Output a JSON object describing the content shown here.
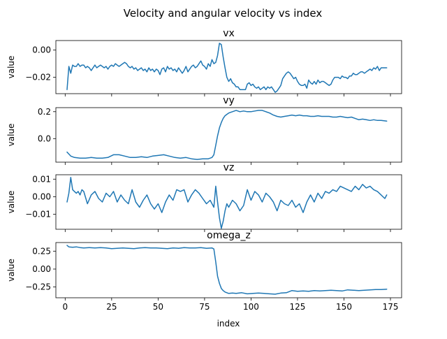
{
  "figure": {
    "title": "Velocity and angular velocity vs index",
    "xlabel": "index"
  },
  "chart_data": [
    {
      "type": "line",
      "title": "vx",
      "xlabel": "",
      "ylabel": "value",
      "xlim": [
        -5,
        181
      ],
      "ylim": [
        -0.032,
        0.007
      ],
      "yticks": [
        0.0,
        -0.02
      ],
      "ytick_labels": [
        "0.00",
        "−0.02"
      ],
      "xticks": [
        0,
        25,
        50,
        75,
        100,
        125,
        150,
        175
      ],
      "xtick_labels": [],
      "grid": false,
      "series": [
        {
          "color": "#1f77b4",
          "x": [
            1,
            2,
            3,
            4,
            5,
            6,
            7,
            8,
            9,
            10,
            11,
            12,
            13,
            14,
            15,
            16,
            17,
            18,
            19,
            20,
            21,
            22,
            23,
            24,
            25,
            26,
            27,
            28,
            29,
            30,
            31,
            32,
            33,
            34,
            35,
            36,
            37,
            38,
            39,
            40,
            41,
            42,
            43,
            44,
            45,
            46,
            47,
            48,
            49,
            50,
            51,
            52,
            53,
            54,
            55,
            56,
            57,
            58,
            59,
            60,
            61,
            62,
            63,
            64,
            65,
            66,
            67,
            68,
            69,
            70,
            71,
            72,
            73,
            74,
            75,
            76,
            77,
            78,
            79,
            80,
            81,
            82,
            83,
            84,
            85,
            86,
            87,
            88,
            89,
            90,
            91,
            92,
            93,
            94,
            95,
            96,
            97,
            98,
            99,
            100,
            101,
            102,
            103,
            104,
            105,
            106,
            107,
            108,
            109,
            110,
            111,
            112,
            113,
            114,
            115,
            116,
            117,
            118,
            119,
            120,
            121,
            122,
            123,
            124,
            125,
            126,
            127,
            128,
            129,
            130,
            131,
            132,
            133,
            134,
            135,
            136,
            137,
            138,
            139,
            140,
            141,
            142,
            143,
            144,
            145,
            146,
            147,
            148,
            149,
            150,
            151,
            152,
            153,
            154,
            155,
            156,
            157,
            158,
            159,
            160,
            161,
            162,
            163,
            164,
            165,
            166,
            167,
            168,
            169,
            170,
            171,
            172,
            173
          ],
          "y": [
            -0.029,
            -0.012,
            -0.017,
            -0.011,
            -0.012,
            -0.012,
            -0.01,
            -0.012,
            -0.011,
            -0.011,
            -0.013,
            -0.012,
            -0.013,
            -0.015,
            -0.013,
            -0.011,
            -0.013,
            -0.012,
            -0.011,
            -0.012,
            -0.013,
            -0.012,
            -0.014,
            -0.012,
            -0.011,
            -0.012,
            -0.01,
            -0.011,
            -0.012,
            -0.011,
            -0.01,
            -0.009,
            -0.01,
            -0.012,
            -0.013,
            -0.012,
            -0.014,
            -0.013,
            -0.015,
            -0.014,
            -0.013,
            -0.015,
            -0.014,
            -0.016,
            -0.013,
            -0.015,
            -0.014,
            -0.016,
            -0.014,
            -0.015,
            -0.018,
            -0.014,
            -0.013,
            -0.016,
            -0.012,
            -0.014,
            -0.013,
            -0.015,
            -0.014,
            -0.016,
            -0.013,
            -0.015,
            -0.017,
            -0.015,
            -0.012,
            -0.016,
            -0.014,
            -0.012,
            -0.011,
            -0.013,
            -0.012,
            -0.01,
            -0.008,
            -0.011,
            -0.012,
            -0.014,
            -0.01,
            -0.012,
            -0.007,
            -0.01,
            -0.009,
            -0.004,
            0.005,
            0.004,
            -0.005,
            -0.013,
            -0.02,
            -0.023,
            -0.021,
            -0.024,
            -0.025,
            -0.027,
            -0.027,
            -0.029,
            -0.029,
            -0.029,
            -0.029,
            -0.025,
            -0.024,
            -0.026,
            -0.025,
            -0.027,
            -0.028,
            -0.027,
            -0.029,
            -0.028,
            -0.027,
            -0.029,
            -0.027,
            -0.028,
            -0.027,
            -0.029,
            -0.031,
            -0.03,
            -0.028,
            -0.026,
            -0.021,
            -0.019,
            -0.017,
            -0.016,
            -0.017,
            -0.019,
            -0.021,
            -0.02,
            -0.023,
            -0.025,
            -0.026,
            -0.026,
            -0.025,
            -0.028,
            -0.022,
            -0.024,
            -0.025,
            -0.023,
            -0.025,
            -0.022,
            -0.024,
            -0.023,
            -0.023,
            -0.024,
            -0.025,
            -0.026,
            -0.025,
            -0.022,
            -0.02,
            -0.02,
            -0.02,
            -0.021,
            -0.019,
            -0.02,
            -0.02,
            -0.021,
            -0.019,
            -0.019,
            -0.017,
            -0.018,
            -0.018,
            -0.017,
            -0.016,
            -0.016,
            -0.017,
            -0.016,
            -0.015,
            -0.014,
            -0.015,
            -0.013,
            -0.014,
            -0.012,
            -0.015,
            -0.013,
            -0.013,
            -0.013,
            -0.013
          ]
        }
      ]
    },
    {
      "type": "line",
      "title": "vy",
      "xlabel": "",
      "ylabel": "value",
      "xlim": [
        -5,
        181
      ],
      "ylim": [
        -0.175,
        0.23
      ],
      "yticks": [
        0.2,
        0.0
      ],
      "ytick_labels": [
        "0.2",
        "0.0"
      ],
      "xticks": [
        0,
        25,
        50,
        75,
        100,
        125,
        150,
        175
      ],
      "xtick_labels": [],
      "grid": false,
      "series": [
        {
          "color": "#1f77b4",
          "x": [
            1,
            3,
            5,
            8,
            11,
            14,
            17,
            20,
            23,
            26,
            29,
            32,
            35,
            38,
            41,
            44,
            47,
            50,
            53,
            56,
            59,
            62,
            65,
            68,
            71,
            74,
            77,
            79,
            80,
            81,
            82,
            83,
            84,
            85,
            86,
            87,
            88,
            89,
            90,
            92,
            94,
            96,
            98,
            100,
            102,
            104,
            106,
            108,
            110,
            112,
            114,
            116,
            118,
            120,
            122,
            124,
            126,
            128,
            130,
            132,
            134,
            136,
            138,
            140,
            142,
            144,
            146,
            148,
            150,
            152,
            154,
            156,
            158,
            160,
            162,
            164,
            166,
            168,
            170,
            173
          ],
          "y": [
            -0.1,
            -0.13,
            -0.14,
            -0.145,
            -0.145,
            -0.14,
            -0.145,
            -0.145,
            -0.14,
            -0.12,
            -0.12,
            -0.13,
            -0.14,
            -0.14,
            -0.135,
            -0.14,
            -0.13,
            -0.125,
            -0.12,
            -0.13,
            -0.14,
            -0.145,
            -0.14,
            -0.15,
            -0.155,
            -0.15,
            -0.15,
            -0.14,
            -0.12,
            -0.05,
            0.02,
            0.08,
            0.12,
            0.15,
            0.17,
            0.18,
            0.19,
            0.195,
            0.2,
            0.21,
            0.2,
            0.205,
            0.2,
            0.2,
            0.205,
            0.21,
            0.21,
            0.2,
            0.19,
            0.175,
            0.165,
            0.16,
            0.165,
            0.17,
            0.175,
            0.17,
            0.175,
            0.17,
            0.17,
            0.165,
            0.165,
            0.17,
            0.165,
            0.165,
            0.165,
            0.16,
            0.16,
            0.165,
            0.16,
            0.155,
            0.16,
            0.15,
            0.14,
            0.145,
            0.14,
            0.135,
            0.14,
            0.135,
            0.135,
            0.13
          ]
        }
      ]
    },
    {
      "type": "line",
      "title": "vz",
      "xlabel": "",
      "ylabel": "value",
      "xlim": [
        -5,
        181
      ],
      "ylim": [
        -0.0185,
        0.0125
      ],
      "yticks": [
        0.01,
        0.0,
        -0.01
      ],
      "ytick_labels": [
        "0.01",
        "0.00",
        "−0.01"
      ],
      "xticks": [
        0,
        25,
        50,
        75,
        100,
        125,
        150,
        175
      ],
      "xtick_labels": [],
      "grid": false,
      "series": [
        {
          "color": "#1f77b4",
          "x": [
            1,
            2,
            3,
            4,
            5,
            6,
            7,
            8,
            9,
            10,
            12,
            14,
            16,
            18,
            20,
            22,
            24,
            26,
            28,
            30,
            32,
            34,
            36,
            38,
            40,
            42,
            44,
            46,
            48,
            50,
            52,
            54,
            56,
            58,
            60,
            62,
            64,
            66,
            68,
            70,
            72,
            74,
            76,
            78,
            80,
            81,
            82,
            83,
            84,
            85,
            86,
            87,
            88,
            90,
            92,
            94,
            96,
            98,
            100,
            102,
            104,
            106,
            108,
            110,
            112,
            114,
            116,
            118,
            120,
            122,
            124,
            126,
            128,
            130,
            132,
            134,
            136,
            138,
            140,
            142,
            144,
            146,
            148,
            150,
            152,
            154,
            156,
            158,
            160,
            162,
            164,
            166,
            168,
            170,
            172,
            173
          ],
          "y": [
            -0.003,
            0.002,
            0.011,
            0.004,
            0.003,
            0.002,
            0.003,
            0.001,
            0.004,
            0.003,
            -0.004,
            0.001,
            0.003,
            -0.001,
            -0.003,
            0.002,
            0.0,
            0.003,
            -0.003,
            0.001,
            -0.002,
            -0.004,
            0.004,
            -0.003,
            -0.006,
            -0.002,
            0.001,
            -0.004,
            -0.007,
            -0.004,
            -0.009,
            -0.003,
            0.001,
            -0.002,
            0.004,
            0.003,
            0.004,
            -0.003,
            0.001,
            0.004,
            0.002,
            -0.001,
            -0.004,
            -0.002,
            -0.006,
            0.006,
            -0.003,
            -0.012,
            -0.018,
            -0.014,
            -0.008,
            -0.004,
            -0.006,
            -0.002,
            -0.004,
            -0.008,
            -0.005,
            0.004,
            -0.002,
            0.003,
            0.001,
            -0.003,
            0.002,
            0.0,
            -0.003,
            -0.008,
            -0.002,
            -0.004,
            -0.005,
            -0.002,
            -0.006,
            -0.004,
            -0.009,
            -0.003,
            0.001,
            -0.003,
            0.002,
            -0.001,
            0.003,
            0.002,
            0.004,
            0.003,
            0.006,
            0.005,
            0.004,
            0.003,
            0.006,
            0.004,
            0.007,
            0.005,
            0.006,
            0.004,
            0.003,
            0.001,
            -0.001,
            0.001
          ]
        }
      ]
    },
    {
      "type": "line",
      "title": "omega_z",
      "xlabel": "index",
      "ylabel": "value",
      "xlim": [
        -5,
        181
      ],
      "ylim": [
        -0.4,
        0.37
      ],
      "yticks": [
        0.25,
        0.0,
        -0.25
      ],
      "ytick_labels": [
        "0.25",
        "0.00",
        "−0.25"
      ],
      "xticks": [
        0,
        25,
        50,
        75,
        100,
        125,
        150,
        175
      ],
      "xtick_labels": [
        "0",
        "25",
        "50",
        "75",
        "100",
        "125",
        "150",
        "175"
      ],
      "grid": false,
      "series": [
        {
          "color": "#1f77b4",
          "x": [
            1,
            2,
            4,
            6,
            8,
            10,
            13,
            16,
            19,
            22,
            25,
            28,
            31,
            34,
            37,
            40,
            43,
            46,
            49,
            52,
            55,
            58,
            61,
            64,
            67,
            70,
            73,
            76,
            79,
            80,
            81,
            82,
            83,
            84,
            85,
            86,
            87,
            88,
            90,
            92,
            95,
            98,
            101,
            104,
            107,
            110,
            113,
            116,
            119,
            122,
            125,
            128,
            131,
            134,
            137,
            140,
            143,
            146,
            149,
            152,
            155,
            158,
            161,
            164,
            167,
            170,
            173
          ],
          "y": [
            0.33,
            0.31,
            0.305,
            0.31,
            0.3,
            0.295,
            0.3,
            0.295,
            0.3,
            0.295,
            0.285,
            0.29,
            0.295,
            0.29,
            0.285,
            0.295,
            0.3,
            0.295,
            0.295,
            0.29,
            0.285,
            0.295,
            0.29,
            0.3,
            0.295,
            0.295,
            0.3,
            0.29,
            0.295,
            0.28,
            0.1,
            -0.1,
            -0.2,
            -0.27,
            -0.3,
            -0.32,
            -0.33,
            -0.34,
            -0.335,
            -0.34,
            -0.33,
            -0.345,
            -0.34,
            -0.335,
            -0.34,
            -0.345,
            -0.35,
            -0.335,
            -0.33,
            -0.3,
            -0.31,
            -0.305,
            -0.31,
            -0.3,
            -0.305,
            -0.3,
            -0.295,
            -0.3,
            -0.305,
            -0.29,
            -0.295,
            -0.3,
            -0.295,
            -0.29,
            -0.285,
            -0.285,
            -0.28
          ]
        }
      ]
    }
  ]
}
